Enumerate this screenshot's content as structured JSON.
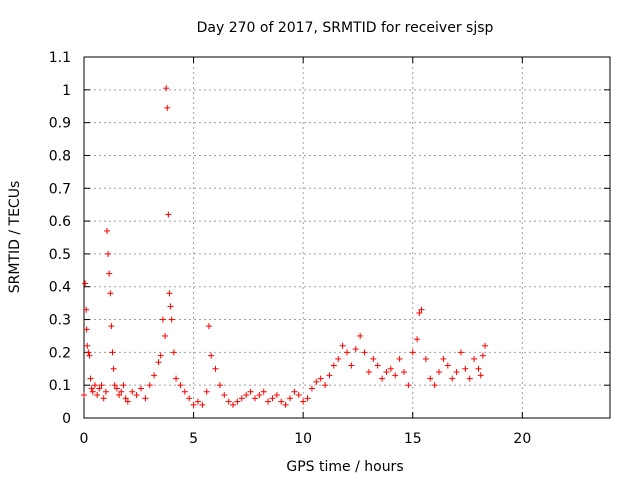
{
  "chart_data": {
    "type": "scatter",
    "title": "Day 270 of 2017, SRMTID for receiver sjsp",
    "xlabel": "GPS time / hours",
    "ylabel": "SRMTID / TECUs",
    "xlim": [
      0,
      24
    ],
    "ylim": [
      0,
      1.1
    ],
    "xticks": [
      0,
      5,
      10,
      15,
      20
    ],
    "xtick_labels": [
      "0",
      "5",
      "10",
      "15",
      "20"
    ],
    "yticks": [
      0,
      0.1,
      0.2,
      0.3,
      0.4,
      0.5,
      0.6,
      0.7,
      0.8,
      0.9,
      1,
      1.1
    ],
    "ytick_labels": [
      "0",
      "0.1",
      "0.2",
      "0.3",
      "0.4",
      "0.5",
      "0.6",
      "0.7",
      "0.8",
      "0.9",
      "1",
      "1.1"
    ],
    "grid": true,
    "series": [
      {
        "name": "SRMTID",
        "marker": "+",
        "color": "#ff0000",
        "x": [
          0.0,
          0.05,
          0.1,
          0.12,
          0.15,
          0.2,
          0.25,
          0.3,
          0.35,
          0.4,
          0.5,
          0.6,
          0.7,
          0.8,
          0.9,
          1.0,
          1.05,
          1.1,
          1.15,
          1.2,
          1.25,
          1.3,
          1.35,
          1.4,
          1.5,
          1.6,
          1.7,
          1.8,
          1.9,
          2.0,
          2.2,
          2.4,
          2.6,
          2.8,
          3.0,
          3.2,
          3.4,
          3.5,
          3.6,
          3.7,
          3.75,
          3.8,
          3.85,
          3.9,
          3.95,
          4.0,
          4.1,
          4.2,
          4.4,
          4.6,
          4.8,
          5.0,
          5.2,
          5.4,
          5.6,
          5.7,
          5.8,
          6.0,
          6.2,
          6.4,
          6.6,
          6.8,
          7.0,
          7.2,
          7.4,
          7.6,
          7.8,
          8.0,
          8.2,
          8.4,
          8.6,
          8.8,
          9.0,
          9.2,
          9.4,
          9.6,
          9.8,
          10.0,
          10.2,
          10.4,
          10.6,
          10.8,
          11.0,
          11.2,
          11.4,
          11.6,
          11.8,
          12.0,
          12.2,
          12.4,
          12.6,
          12.8,
          13.0,
          13.2,
          13.4,
          13.6,
          13.8,
          14.0,
          14.2,
          14.4,
          14.6,
          14.8,
          15.0,
          15.2,
          15.3,
          15.4,
          15.6,
          15.8,
          16.0,
          16.2,
          16.4,
          16.6,
          16.8,
          17.0,
          17.2,
          17.4,
          17.6,
          17.8,
          18.0,
          18.1,
          18.2,
          18.3
        ],
        "y": [
          0.07,
          0.41,
          0.33,
          0.27,
          0.22,
          0.2,
          0.19,
          0.12,
          0.09,
          0.08,
          0.1,
          0.07,
          0.09,
          0.1,
          0.06,
          0.08,
          0.57,
          0.5,
          0.44,
          0.38,
          0.28,
          0.2,
          0.15,
          0.1,
          0.09,
          0.07,
          0.08,
          0.1,
          0.06,
          0.05,
          0.08,
          0.07,
          0.09,
          0.06,
          0.1,
          0.13,
          0.17,
          0.19,
          0.3,
          0.25,
          1.005,
          0.945,
          0.62,
          0.38,
          0.34,
          0.3,
          0.2,
          0.12,
          0.1,
          0.08,
          0.06,
          0.04,
          0.05,
          0.04,
          0.08,
          0.28,
          0.19,
          0.15,
          0.1,
          0.07,
          0.05,
          0.04,
          0.05,
          0.06,
          0.07,
          0.08,
          0.06,
          0.07,
          0.08,
          0.05,
          0.06,
          0.07,
          0.05,
          0.04,
          0.06,
          0.08,
          0.07,
          0.05,
          0.06,
          0.09,
          0.11,
          0.12,
          0.1,
          0.13,
          0.16,
          0.18,
          0.22,
          0.2,
          0.16,
          0.21,
          0.25,
          0.2,
          0.14,
          0.18,
          0.16,
          0.12,
          0.14,
          0.15,
          0.13,
          0.18,
          0.14,
          0.1,
          0.2,
          0.24,
          0.32,
          0.33,
          0.18,
          0.12,
          0.1,
          0.14,
          0.18,
          0.16,
          0.12,
          0.14,
          0.2,
          0.15,
          0.12,
          0.18,
          0.15,
          0.13,
          0.19,
          0.22
        ]
      }
    ]
  }
}
